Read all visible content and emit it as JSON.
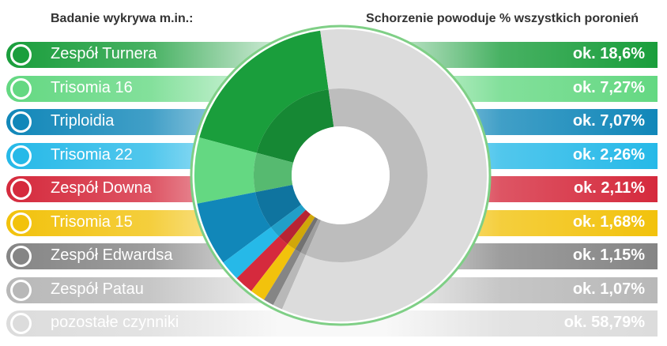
{
  "header": {
    "left_title": "Badanie wykrywa m.in.:",
    "right_title": "Schorzenie powoduje % wszystkich poronień"
  },
  "chart_data": {
    "type": "pie",
    "categories": [
      "Zespół Turnera",
      "Trisomia 16",
      "Triploidia",
      "Trisomia 22",
      "Zespół Downa",
      "Trisomia 15",
      "Zespół Edwardsa",
      "Zespół Patau",
      "pozostałe czynniki"
    ],
    "values": [
      18.6,
      7.27,
      7.07,
      2.26,
      2.11,
      1.68,
      1.15,
      1.07,
      58.79
    ],
    "value_labels": [
      "ok. 18,6%",
      "ok. 7,27%",
      "ok. 7,07%",
      "ok. 2,26%",
      "ok. 2,11%",
      "ok. 1,68%",
      "ok. 1,15%",
      "ok. 1,07%",
      "ok. 58,79%"
    ],
    "colors": [
      "#1a9e3c",
      "#64d882",
      "#1187b9",
      "#26b9e8",
      "#d52a3d",
      "#f2c20c",
      "#858585",
      "#b8b8b8",
      "#dcdcdc"
    ],
    "donut_ring_color": "#7fcf86"
  }
}
